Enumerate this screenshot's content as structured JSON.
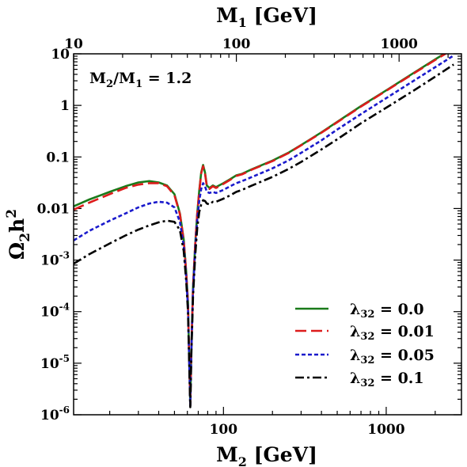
{
  "chart_data": {
    "type": "line",
    "xlabel_base": "M",
    "xlabel_sub": "2",
    "xlabel_unit": " [GeV]",
    "top_xlabel_base": "M",
    "top_xlabel_sub": "1",
    "top_xlabel_unit": " [GeV]",
    "ylabel_base": "Ω",
    "ylabel_sub": "2",
    "ylabel_tail": "h",
    "ylabel_sup": "2",
    "x_scale": "log",
    "y_scale": "log",
    "xlim": [
      12,
      2900
    ],
    "ylim": [
      1e-06,
      10
    ],
    "top_xlim": [
      10,
      2416.7
    ],
    "annotation": {
      "a": "M",
      "a_sub": "2",
      "slash": "/",
      "b": "M",
      "b_sub": "1",
      "rest": " = 1.2"
    },
    "x_ticks": [
      {
        "value": 100,
        "label": "100"
      },
      {
        "value": 1000,
        "label": "1000"
      }
    ],
    "top_x_ticks": [
      {
        "value": 10,
        "label": "10"
      },
      {
        "value": 100,
        "label": "100"
      },
      {
        "value": 1000,
        "label": "1000"
      }
    ],
    "y_ticks": [
      {
        "value": 10,
        "base": "10",
        "sup": ""
      },
      {
        "value": 1,
        "base": "1",
        "sup": ""
      },
      {
        "value": 0.1,
        "base": "0.1",
        "sup": ""
      },
      {
        "value": 0.01,
        "base": "0.01",
        "sup": ""
      },
      {
        "value": 0.001,
        "base": "10",
        "sup": "-3"
      },
      {
        "value": 0.0001,
        "base": "10",
        "sup": "-4"
      },
      {
        "value": 1e-05,
        "base": "10",
        "sup": "-5"
      },
      {
        "value": 1e-06,
        "base": "10",
        "sup": "-6"
      }
    ],
    "legend_position": "bottom-right",
    "series": [
      {
        "name": "λ32 = 0.0",
        "legend_base": "λ",
        "legend_sub": "32",
        "legend_value": " = 0.0",
        "color": "#1a7a1a",
        "dash": "",
        "x": [
          12,
          15,
          20,
          25,
          30,
          35,
          40,
          45,
          50,
          54,
          57,
          59,
          60.5,
          61.5,
          62.5,
          63.5,
          65,
          67,
          69,
          71,
          73,
          75,
          77,
          79,
          82,
          86,
          90,
          100,
          110,
          120,
          130,
          150,
          200,
          250,
          300,
          400,
          500,
          700,
          1000,
          1500,
          2000,
          2600
        ],
        "y": [
          0.011,
          0.015,
          0.021,
          0.027,
          0.032,
          0.034,
          0.032,
          0.028,
          0.019,
          0.008,
          0.0025,
          0.0006,
          0.00015,
          1.5e-05,
          1.5e-06,
          2e-05,
          0.0003,
          0.002,
          0.008,
          0.022,
          0.05,
          0.07,
          0.05,
          0.028,
          0.025,
          0.028,
          0.026,
          0.031,
          0.037,
          0.044,
          0.047,
          0.058,
          0.085,
          0.12,
          0.17,
          0.3,
          0.48,
          0.97,
          1.95,
          4.4,
          7.8,
          13
        ]
      },
      {
        "name": "λ32 = 0.01",
        "legend_base": "λ",
        "legend_sub": "32",
        "legend_value": " = 0.01",
        "color": "#dd1c1c",
        "dash": "14,6",
        "x": [
          12,
          15,
          20,
          25,
          30,
          35,
          40,
          45,
          50,
          54,
          57,
          59,
          60.5,
          61.5,
          62.5,
          63.5,
          65,
          67,
          69,
          71,
          73,
          75,
          77,
          79,
          82,
          86,
          90,
          100,
          110,
          120,
          130,
          150,
          200,
          250,
          300,
          400,
          500,
          700,
          1000,
          1500,
          2000,
          2600
        ],
        "y": [
          0.0095,
          0.013,
          0.019,
          0.025,
          0.029,
          0.031,
          0.031,
          0.027,
          0.018,
          0.0078,
          0.0024,
          0.00058,
          0.00015,
          1.5e-05,
          1.5e-06,
          2e-05,
          0.0003,
          0.002,
          0.008,
          0.021,
          0.048,
          0.066,
          0.047,
          0.027,
          0.024,
          0.027,
          0.025,
          0.03,
          0.036,
          0.043,
          0.046,
          0.057,
          0.083,
          0.118,
          0.168,
          0.295,
          0.47,
          0.95,
          1.92,
          4.3,
          7.6,
          12.5
        ]
      },
      {
        "name": "λ32 = 0.05",
        "legend_base": "λ",
        "legend_sub": "32",
        "legend_value": " = 0.05",
        "color": "#1a1acc",
        "dash": "5,3",
        "x": [
          12,
          15,
          20,
          25,
          30,
          35,
          40,
          45,
          50,
          54,
          57,
          59,
          60.5,
          61.5,
          62.5,
          63.5,
          65,
          67,
          69,
          71,
          73,
          75,
          77,
          79,
          82,
          86,
          90,
          100,
          110,
          120,
          130,
          150,
          200,
          250,
          300,
          400,
          500,
          700,
          1000,
          1500,
          2000,
          2600
        ],
        "y": [
          0.0024,
          0.0037,
          0.0058,
          0.008,
          0.0105,
          0.0125,
          0.0135,
          0.013,
          0.0105,
          0.0055,
          0.0019,
          0.00047,
          0.00012,
          1.3e-05,
          1.5e-06,
          1.8e-05,
          0.00025,
          0.0016,
          0.006,
          0.014,
          0.024,
          0.031,
          0.027,
          0.021,
          0.02,
          0.021,
          0.02,
          0.023,
          0.027,
          0.031,
          0.034,
          0.041,
          0.06,
          0.085,
          0.12,
          0.21,
          0.34,
          0.68,
          1.38,
          3.1,
          5.5,
          9.3
        ]
      },
      {
        "name": "λ32 = 0.1",
        "legend_base": "λ",
        "legend_sub": "32",
        "legend_value": " = 0.1",
        "color": "#000000",
        "dash": "11,4,3,4",
        "x": [
          12,
          15,
          20,
          25,
          30,
          35,
          40,
          45,
          50,
          54,
          57,
          59,
          60.5,
          61.5,
          62.5,
          63.5,
          65,
          67,
          69,
          71,
          73,
          75,
          77,
          79,
          82,
          86,
          90,
          100,
          110,
          120,
          130,
          150,
          200,
          250,
          300,
          400,
          500,
          700,
          1000,
          1500,
          2000,
          2600
        ],
        "y": [
          0.00085,
          0.0013,
          0.0021,
          0.003,
          0.0039,
          0.0047,
          0.0054,
          0.0058,
          0.0055,
          0.0038,
          0.0015,
          0.0004,
          0.0001,
          1.2e-05,
          1.4e-06,
          1.6e-05,
          0.0002,
          0.0012,
          0.0042,
          0.0085,
          0.012,
          0.0145,
          0.014,
          0.0125,
          0.012,
          0.0135,
          0.0135,
          0.0155,
          0.018,
          0.021,
          0.023,
          0.028,
          0.041,
          0.058,
          0.08,
          0.14,
          0.22,
          0.45,
          0.9,
          2.0,
          3.6,
          6.2
        ]
      }
    ]
  }
}
